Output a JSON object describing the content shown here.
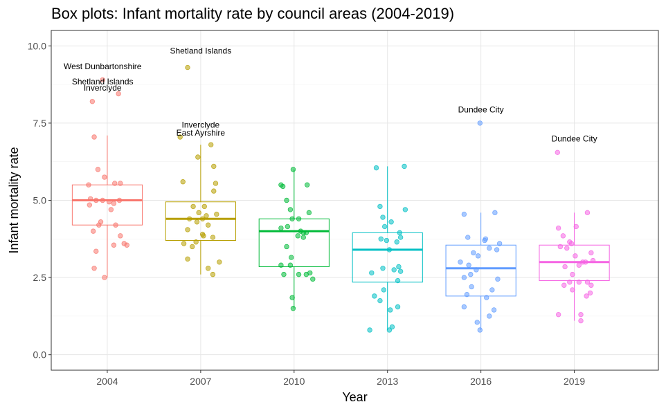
{
  "chart_data": {
    "type": "box",
    "title": "Box plots: Infant mortality rate by council areas (2004-2019)",
    "xlabel": "Year",
    "ylabel": "Infant mortality rate",
    "ylim": [
      -0.5,
      10.5
    ],
    "yticks": [
      "0.0",
      "2.5",
      "5.0",
      "7.5",
      "10.0"
    ],
    "grid": true,
    "categories": [
      "2004",
      "2007",
      "2010",
      "2013",
      "2016",
      "2019"
    ],
    "colors": [
      "#F8766D",
      "#B79F00",
      "#00BA38",
      "#00BFC4",
      "#619CFF",
      "#F564E3"
    ],
    "boxes": [
      {
        "year": "2004",
        "q1": 4.2,
        "median": 5.0,
        "q3": 5.5,
        "whisker_low": 2.5,
        "whisker_high": 7.1
      },
      {
        "year": "2007",
        "q1": 3.7,
        "median": 4.4,
        "q3": 4.95,
        "whisker_low": 2.6,
        "whisker_high": 6.8
      },
      {
        "year": "2010",
        "q1": 2.85,
        "median": 4.0,
        "q3": 4.4,
        "whisker_low": 1.5,
        "whisker_high": 6.0
      },
      {
        "year": "2013",
        "q1": 2.35,
        "median": 3.4,
        "q3": 3.95,
        "whisker_low": 0.8,
        "whisker_high": 6.1
      },
      {
        "year": "2016",
        "q1": 1.9,
        "median": 2.8,
        "q3": 3.55,
        "whisker_low": 0.8,
        "whisker_high": 4.6
      },
      {
        "year": "2019",
        "q1": 2.4,
        "median": 3.0,
        "q3": 3.55,
        "whisker_low": 1.1,
        "whisker_high": 4.6
      }
    ],
    "points": [
      [
        {
          "j": -0.05,
          "y": 8.9
        },
        {
          "j": -0.16,
          "y": 8.2
        },
        {
          "j": 0.12,
          "y": 8.45
        },
        {
          "j": -0.14,
          "y": 7.05
        },
        {
          "j": -0.1,
          "y": 6.0
        },
        {
          "j": -0.03,
          "y": 5.75
        },
        {
          "j": 0.08,
          "y": 5.55
        },
        {
          "j": 0.14,
          "y": 5.55
        },
        {
          "j": -0.2,
          "y": 5.5
        },
        {
          "j": -0.18,
          "y": 5.05
        },
        {
          "j": -0.12,
          "y": 5.0
        },
        {
          "j": -0.05,
          "y": 5.0
        },
        {
          "j": 0.02,
          "y": 4.95
        },
        {
          "j": 0.07,
          "y": 4.9
        },
        {
          "j": 0.13,
          "y": 5.0
        },
        {
          "j": -0.19,
          "y": 4.85
        },
        {
          "j": 0.04,
          "y": 4.7
        },
        {
          "j": -0.07,
          "y": 4.3
        },
        {
          "j": -0.09,
          "y": 4.2
        },
        {
          "j": 0.09,
          "y": 4.2
        },
        {
          "j": -0.15,
          "y": 4.0
        },
        {
          "j": 0.14,
          "y": 3.85
        },
        {
          "j": 0.18,
          "y": 3.6
        },
        {
          "j": 0.21,
          "y": 3.55
        },
        {
          "j": 0.07,
          "y": 3.55
        },
        {
          "j": -0.12,
          "y": 3.35
        },
        {
          "j": -0.14,
          "y": 2.8
        },
        {
          "j": -0.03,
          "y": 2.5
        }
      ],
      [
        {
          "j": -0.14,
          "y": 9.3
        },
        {
          "j": -0.22,
          "y": 7.05
        },
        {
          "j": 0.11,
          "y": 6.8
        },
        {
          "j": -0.03,
          "y": 6.4
        },
        {
          "j": 0.14,
          "y": 6.1
        },
        {
          "j": 0.16,
          "y": 5.55
        },
        {
          "j": -0.19,
          "y": 5.6
        },
        {
          "j": 0.14,
          "y": 5.3
        },
        {
          "j": -0.08,
          "y": 4.8
        },
        {
          "j": 0.04,
          "y": 4.8
        },
        {
          "j": -0.02,
          "y": 4.6
        },
        {
          "j": 0.06,
          "y": 4.5
        },
        {
          "j": 0.17,
          "y": 4.55
        },
        {
          "j": -0.12,
          "y": 4.4
        },
        {
          "j": -0.04,
          "y": 4.3
        },
        {
          "j": 0.02,
          "y": 4.4
        },
        {
          "j": 0.08,
          "y": 4.2
        },
        {
          "j": -0.14,
          "y": 4.05
        },
        {
          "j": 0.02,
          "y": 3.9
        },
        {
          "j": 0.03,
          "y": 3.85
        },
        {
          "j": 0.13,
          "y": 3.8
        },
        {
          "j": -0.05,
          "y": 3.65
        },
        {
          "j": -0.18,
          "y": 3.6
        },
        {
          "j": -0.09,
          "y": 3.5
        },
        {
          "j": -0.14,
          "y": 3.1
        },
        {
          "j": 0.2,
          "y": 3.0
        },
        {
          "j": 0.08,
          "y": 2.8
        },
        {
          "j": 0.13,
          "y": 2.6
        }
      ],
      [
        {
          "j": -0.01,
          "y": 6.0
        },
        {
          "j": -0.14,
          "y": 5.5
        },
        {
          "j": 0.14,
          "y": 5.5
        },
        {
          "j": -0.12,
          "y": 5.45
        },
        {
          "j": -0.08,
          "y": 5.0
        },
        {
          "j": -0.04,
          "y": 4.7
        },
        {
          "j": 0.16,
          "y": 4.6
        },
        {
          "j": -0.02,
          "y": 4.4
        },
        {
          "j": 0.05,
          "y": 4.4
        },
        {
          "j": -0.14,
          "y": 4.1
        },
        {
          "j": -0.07,
          "y": 4.15
        },
        {
          "j": 0.07,
          "y": 4.0
        },
        {
          "j": 0.1,
          "y": 3.95
        },
        {
          "j": 0.13,
          "y": 3.95
        },
        {
          "j": 0.04,
          "y": 3.85
        },
        {
          "j": 0.1,
          "y": 3.8
        },
        {
          "j": -0.08,
          "y": 3.5
        },
        {
          "j": -0.03,
          "y": 3.15
        },
        {
          "j": -0.14,
          "y": 2.9
        },
        {
          "j": -0.04,
          "y": 2.9
        },
        {
          "j": -0.11,
          "y": 2.6
        },
        {
          "j": 0.17,
          "y": 2.65
        },
        {
          "j": 0.13,
          "y": 2.6
        },
        {
          "j": 0.05,
          "y": 2.6
        },
        {
          "j": 0.2,
          "y": 2.45
        },
        {
          "j": -0.02,
          "y": 1.85
        },
        {
          "j": -0.01,
          "y": 1.5
        }
      ],
      [
        {
          "j": 0.18,
          "y": 6.1
        },
        {
          "j": -0.12,
          "y": 6.05
        },
        {
          "j": -0.08,
          "y": 4.8
        },
        {
          "j": 0.19,
          "y": 4.7
        },
        {
          "j": -0.05,
          "y": 4.45
        },
        {
          "j": 0.04,
          "y": 4.3
        },
        {
          "j": -0.03,
          "y": 4.15
        },
        {
          "j": 0.13,
          "y": 3.95
        },
        {
          "j": 0.14,
          "y": 3.8
        },
        {
          "j": -0.07,
          "y": 3.75
        },
        {
          "j": 0.1,
          "y": 3.65
        },
        {
          "j": -0.01,
          "y": 3.7
        },
        {
          "j": 0.02,
          "y": 3.4
        },
        {
          "j": -0.05,
          "y": 2.8
        },
        {
          "j": 0.12,
          "y": 2.85
        },
        {
          "j": 0.14,
          "y": 2.7
        },
        {
          "j": 0.07,
          "y": 2.75
        },
        {
          "j": -0.17,
          "y": 2.65
        },
        {
          "j": 0.11,
          "y": 2.4
        },
        {
          "j": -0.04,
          "y": 2.1
        },
        {
          "j": -0.14,
          "y": 1.9
        },
        {
          "j": -0.08,
          "y": 1.75
        },
        {
          "j": 0.11,
          "y": 1.55
        },
        {
          "j": 0.03,
          "y": 1.45
        },
        {
          "j": 0.05,
          "y": 0.9
        },
        {
          "j": -0.19,
          "y": 0.8
        },
        {
          "j": 0.02,
          "y": 0.8
        }
      ],
      [
        {
          "j": -0.01,
          "y": 7.5
        },
        {
          "j": -0.18,
          "y": 4.55
        },
        {
          "j": 0.15,
          "y": 4.6
        },
        {
          "j": -0.14,
          "y": 3.8
        },
        {
          "j": 0.05,
          "y": 3.75
        },
        {
          "j": 0.04,
          "y": 3.7
        },
        {
          "j": 0.2,
          "y": 3.6
        },
        {
          "j": 0.09,
          "y": 3.45
        },
        {
          "j": 0.17,
          "y": 3.4
        },
        {
          "j": -0.08,
          "y": 3.3
        },
        {
          "j": -0.03,
          "y": 3.2
        },
        {
          "j": -0.22,
          "y": 3.0
        },
        {
          "j": -0.13,
          "y": 2.9
        },
        {
          "j": -0.05,
          "y": 2.75
        },
        {
          "j": -0.11,
          "y": 2.6
        },
        {
          "j": -0.18,
          "y": 2.5
        },
        {
          "j": 0.18,
          "y": 2.45
        },
        {
          "j": -0.1,
          "y": 2.2
        },
        {
          "j": 0.12,
          "y": 2.1
        },
        {
          "j": -0.15,
          "y": 1.95
        },
        {
          "j": 0.06,
          "y": 1.85
        },
        {
          "j": -0.18,
          "y": 1.55
        },
        {
          "j": 0.14,
          "y": 1.45
        },
        {
          "j": 0.09,
          "y": 1.25
        },
        {
          "j": -0.04,
          "y": 1.05
        },
        {
          "j": -0.01,
          "y": 0.8
        }
      ],
      [
        {
          "j": -0.18,
          "y": 6.55
        },
        {
          "j": 0.14,
          "y": 4.6
        },
        {
          "j": -0.17,
          "y": 4.1
        },
        {
          "j": 0.02,
          "y": 4.15
        },
        {
          "j": -0.12,
          "y": 3.85
        },
        {
          "j": -0.05,
          "y": 3.65
        },
        {
          "j": -0.03,
          "y": 3.6
        },
        {
          "j": -0.15,
          "y": 3.5
        },
        {
          "j": -0.08,
          "y": 3.45
        },
        {
          "j": 0.18,
          "y": 3.3
        },
        {
          "j": 0.01,
          "y": 3.2
        },
        {
          "j": 0.2,
          "y": 3.05
        },
        {
          "j": 0.09,
          "y": 3.0
        },
        {
          "j": 0.12,
          "y": 3.0
        },
        {
          "j": 0.05,
          "y": 2.9
        },
        {
          "j": -0.1,
          "y": 2.85
        },
        {
          "j": -0.02,
          "y": 2.6
        },
        {
          "j": -0.05,
          "y": 2.35
        },
        {
          "j": 0.05,
          "y": 2.35
        },
        {
          "j": 0.14,
          "y": 2.35
        },
        {
          "j": 0.18,
          "y": 2.25
        },
        {
          "j": -0.11,
          "y": 2.25
        },
        {
          "j": -0.02,
          "y": 2.1
        },
        {
          "j": 0.17,
          "y": 2.0
        },
        {
          "j": 0.13,
          "y": 1.9
        },
        {
          "j": -0.17,
          "y": 1.3
        },
        {
          "j": 0.07,
          "y": 1.3
        },
        {
          "j": 0.07,
          "y": 1.1
        }
      ]
    ],
    "annotations": [
      {
        "label": "West Dunbartonshire",
        "x": "2004",
        "dx": -0.05,
        "y": 9.25
      },
      {
        "label": "Shetland Islands",
        "x": "2004",
        "dx": -0.05,
        "y": 8.75
      },
      {
        "label": "Inverclyde",
        "x": "2004",
        "dx": -0.05,
        "y": 8.55
      },
      {
        "label": "Shetland Islands",
        "x": "2007",
        "dx": 0.0,
        "y": 9.75
      },
      {
        "label": "Inverclyde",
        "x": "2007",
        "dx": 0.0,
        "y": 7.35
      },
      {
        "label": "East Ayrshire",
        "x": "2007",
        "dx": 0.0,
        "y": 7.1
      },
      {
        "label": "Dundee City",
        "x": "2016",
        "dx": 0.0,
        "y": 7.85
      },
      {
        "label": "Dundee City",
        "x": "2019",
        "dx": 0.0,
        "y": 6.9
      }
    ]
  }
}
